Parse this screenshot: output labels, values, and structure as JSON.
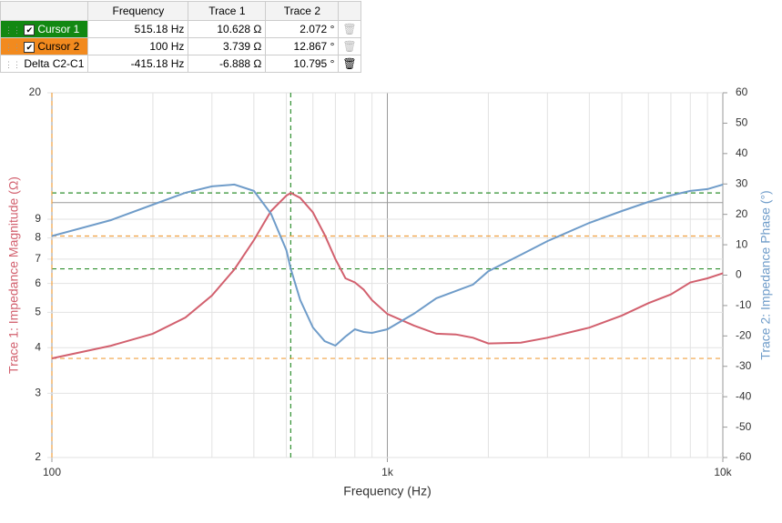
{
  "table": {
    "columns": [
      "Frequency",
      "Trace 1",
      "Trace 2"
    ],
    "rows": [
      {
        "name": "Cursor 1",
        "cells": [
          "515.18 Hz",
          "10.628 Ω",
          "2.072 °"
        ]
      },
      {
        "name": "Cursor 2",
        "cells": [
          "100 Hz",
          "3.739 Ω",
          "12.867 °"
        ]
      },
      {
        "name": "Delta C2-C1",
        "cells": [
          "-415.18 Hz",
          "-6.888 Ω",
          "10.795 °"
        ]
      }
    ]
  },
  "chart_data": {
    "type": "line",
    "xlabel": "Frequency (Hz)",
    "ylabel": "Trace 1: Impedance Magnitude (Ω)",
    "y2label": "Trace 2: Impedance Phase (°)",
    "xscale": "log",
    "yscale": "log",
    "xlim": [
      100,
      10000
    ],
    "xticks": [
      100,
      {
        "value": 1000,
        "label": "1k"
      },
      {
        "value": 10000,
        "label": "10k"
      }
    ],
    "xminor": [
      200,
      300,
      400,
      500,
      600,
      700,
      800,
      900,
      2000,
      3000,
      4000,
      5000,
      6000,
      7000,
      8000,
      9000
    ],
    "ylim": [
      2,
      20
    ],
    "yticks": [
      2,
      3,
      4,
      5,
      6,
      7,
      8,
      9,
      20
    ],
    "yminor": [
      10
    ],
    "y2lim": [
      -60,
      60
    ],
    "y2ticks": [
      -60,
      -50,
      -40,
      -30,
      -20,
      -10,
      0,
      10,
      20,
      30,
      40,
      50,
      60
    ],
    "x": [
      100,
      150,
      200,
      250,
      300,
      350,
      400,
      450,
      500,
      515.18,
      550,
      600,
      650,
      700,
      750,
      800,
      850,
      900,
      1000,
      1200,
      1400,
      1600,
      1800,
      2000,
      2500,
      3000,
      4000,
      5000,
      6000,
      7000,
      8000,
      9000,
      10000
    ],
    "series": [
      {
        "color": "#d2606e",
        "values": [
          3.74,
          4.05,
          4.37,
          4.84,
          5.56,
          6.56,
          7.89,
          9.48,
          10.45,
          10.63,
          10.3,
          9.4,
          8.16,
          7.0,
          6.2,
          6.04,
          5.77,
          5.4,
          4.95,
          4.6,
          4.37,
          4.35,
          4.26,
          4.11,
          4.13,
          4.26,
          4.54,
          4.9,
          5.3,
          5.6,
          6.04,
          6.2,
          6.4
        ]
      },
      {
        "color": "#6f9cc9",
        "axis": "y2",
        "values": [
          12.87,
          18.1,
          23.2,
          27.1,
          29.2,
          29.8,
          27.7,
          20.2,
          8.2,
          2.07,
          -8.2,
          -17.2,
          -21.7,
          -23.2,
          -20.2,
          -17.8,
          -18.7,
          -19.0,
          -17.8,
          -12.7,
          -7.6,
          -5.2,
          -3.1,
          1.3,
          6.7,
          11.2,
          17.2,
          21.1,
          24.1,
          26.2,
          27.7,
          28.3,
          29.8
        ]
      }
    ],
    "cursors": [
      {
        "color": "#2f8f2f",
        "x": 515.18,
        "y": 10.628,
        "y2": 2.072
      },
      {
        "color": "#f0a040",
        "x": 100,
        "y": 3.739,
        "y2": 12.867
      }
    ]
  }
}
